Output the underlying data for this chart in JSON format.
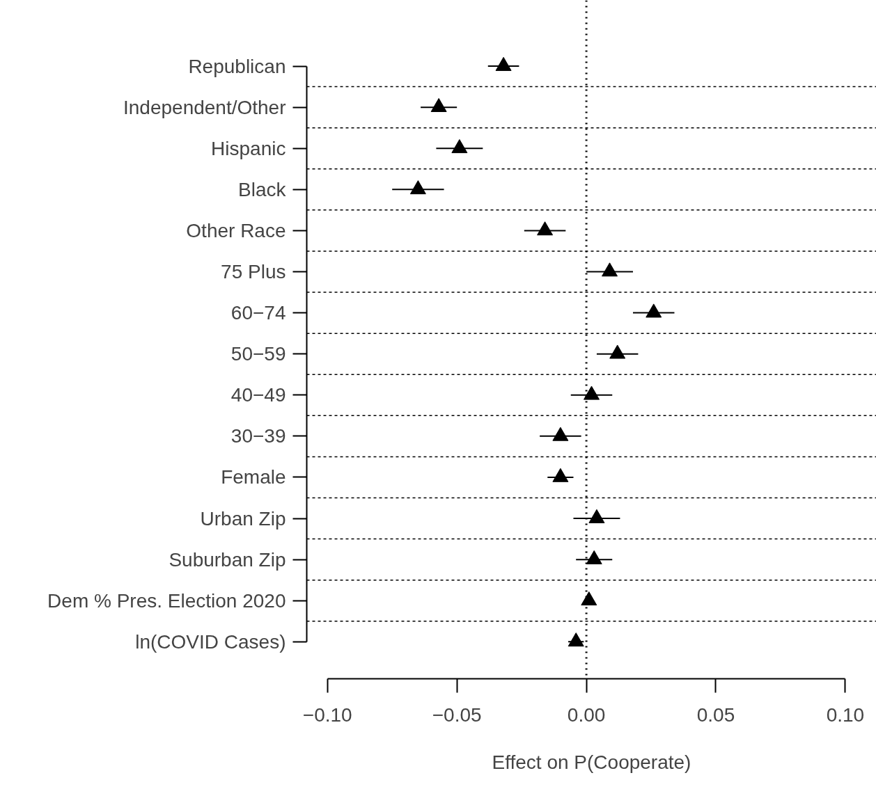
{
  "chart_data": {
    "type": "scatter",
    "orientation": "horizontal",
    "xlabel": "Effect on P(Cooperate)",
    "categories": [
      "Republican",
      "Independent/Other",
      "Hispanic",
      "Black",
      "Other Race",
      "75 Plus",
      "60−74",
      "50−59",
      "40−49",
      "30−39",
      "Female",
      "Urban Zip",
      "Suburban Zip",
      "Dem % Pres. Election 2020",
      "ln(COVID Cases)"
    ],
    "values": [
      -0.032,
      -0.057,
      -0.049,
      -0.065,
      -0.016,
      0.009,
      0.026,
      0.012,
      0.002,
      -0.01,
      -0.01,
      0.004,
      0.003,
      0.001,
      -0.004
    ],
    "errors": [
      0.006,
      0.007,
      0.009,
      0.01,
      0.008,
      0.009,
      0.008,
      0.008,
      0.008,
      0.008,
      0.005,
      0.009,
      0.007,
      null,
      0.003
    ],
    "color": "#000000",
    "marker": "triangle",
    "xlim": [
      -0.108,
      0.112
    ],
    "xticks": [
      {
        "value": -0.1,
        "label": "−0.10"
      },
      {
        "value": -0.05,
        "label": "−0.05"
      },
      {
        "value": 0,
        "label": "0.00"
      },
      {
        "value": 0.05,
        "label": "0.05"
      },
      {
        "value": 0.1,
        "label": "0.10"
      }
    ],
    "ref_lines": [
      {
        "axis": "x",
        "value": 0,
        "line_style": "dotted",
        "color": "#000000"
      }
    ],
    "grid": "y"
  }
}
